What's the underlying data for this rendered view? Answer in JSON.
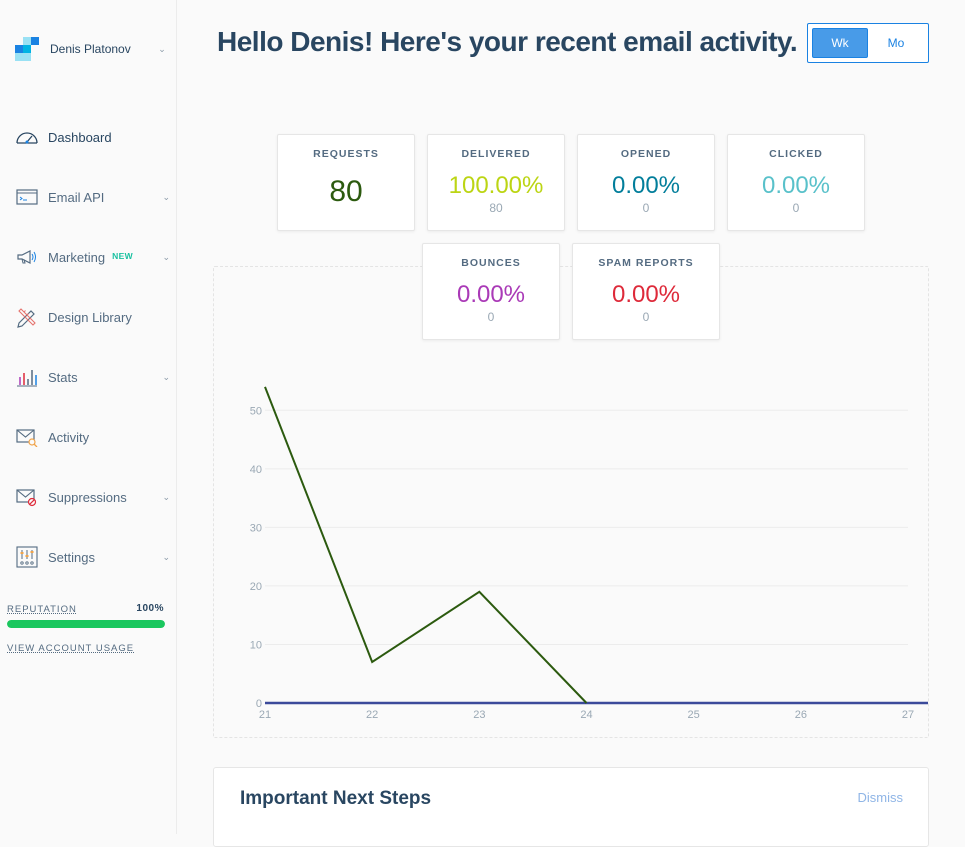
{
  "account": {
    "name": "Denis Platonov"
  },
  "colors": {
    "brand_dark": "#294661",
    "accent_blue": "#1a82e2",
    "reputation_green": "#1ac75e",
    "new_badge": "#1ac1a1"
  },
  "nav": {
    "items": [
      {
        "label": "Dashboard",
        "icon": "dashboard-gauge-icon",
        "has_submenu": false,
        "active": true
      },
      {
        "label": "Email API",
        "icon": "email-api-terminal-icon",
        "has_submenu": true
      },
      {
        "label": "Marketing",
        "icon": "marketing-megaphone-icon",
        "has_submenu": true,
        "badge": "NEW"
      },
      {
        "label": "Design Library",
        "icon": "design-pencil-ruler-icon",
        "has_submenu": false
      },
      {
        "label": "Stats",
        "icon": "stats-bar-chart-icon",
        "has_submenu": true
      },
      {
        "label": "Activity",
        "icon": "activity-envelope-search-icon",
        "has_submenu": false
      },
      {
        "label": "Suppressions",
        "icon": "suppressions-envelope-block-icon",
        "has_submenu": true
      },
      {
        "label": "Settings",
        "icon": "settings-sliders-icon",
        "has_submenu": true
      }
    ]
  },
  "reputation": {
    "label": "REPUTATION",
    "value_text": "100%",
    "value": 100
  },
  "usage_link": "VIEW ACCOUNT USAGE",
  "header": {
    "title": "Hello Denis! Here's your recent email activity."
  },
  "period_toggle": {
    "week_label": "Wk",
    "month_label": "Mo",
    "selected": "Wk"
  },
  "stats": {
    "requests": {
      "title": "REQUESTS",
      "value": "80",
      "color": "#2c5a0f"
    },
    "delivered": {
      "title": "DELIVERED",
      "value": "100.00%",
      "count": "80",
      "color": "#bcd514"
    },
    "opened": {
      "title": "OPENED",
      "value": "0.00%",
      "count": "0",
      "color": "#027e9b"
    },
    "clicked": {
      "title": "CLICKED",
      "value": "0.00%",
      "count": "0",
      "color": "#59c1ca"
    },
    "bounces": {
      "title": "BOUNCES",
      "value": "0.00%",
      "count": "0",
      "color": "#aa3ab7"
    },
    "spam_reports": {
      "title": "SPAM REPORTS",
      "value": "0.00%",
      "count": "0",
      "color": "#de2a3a"
    }
  },
  "chart_data": {
    "type": "line",
    "x": [
      "21",
      "22",
      "23",
      "24",
      "25",
      "26",
      "27"
    ],
    "y_ticks": [
      0,
      10,
      20,
      30,
      40,
      50
    ],
    "ylim": [
      0,
      55
    ],
    "grid": true,
    "series": [
      {
        "values": [
          54,
          7,
          19,
          0,
          null,
          null,
          null
        ],
        "color": "#2c5a0f"
      },
      {
        "values": [
          0,
          0,
          0,
          0,
          0,
          0,
          0
        ],
        "color": "#3b4a9a"
      }
    ]
  },
  "next_steps": {
    "title": "Important Next Steps",
    "dismiss": "Dismiss"
  }
}
